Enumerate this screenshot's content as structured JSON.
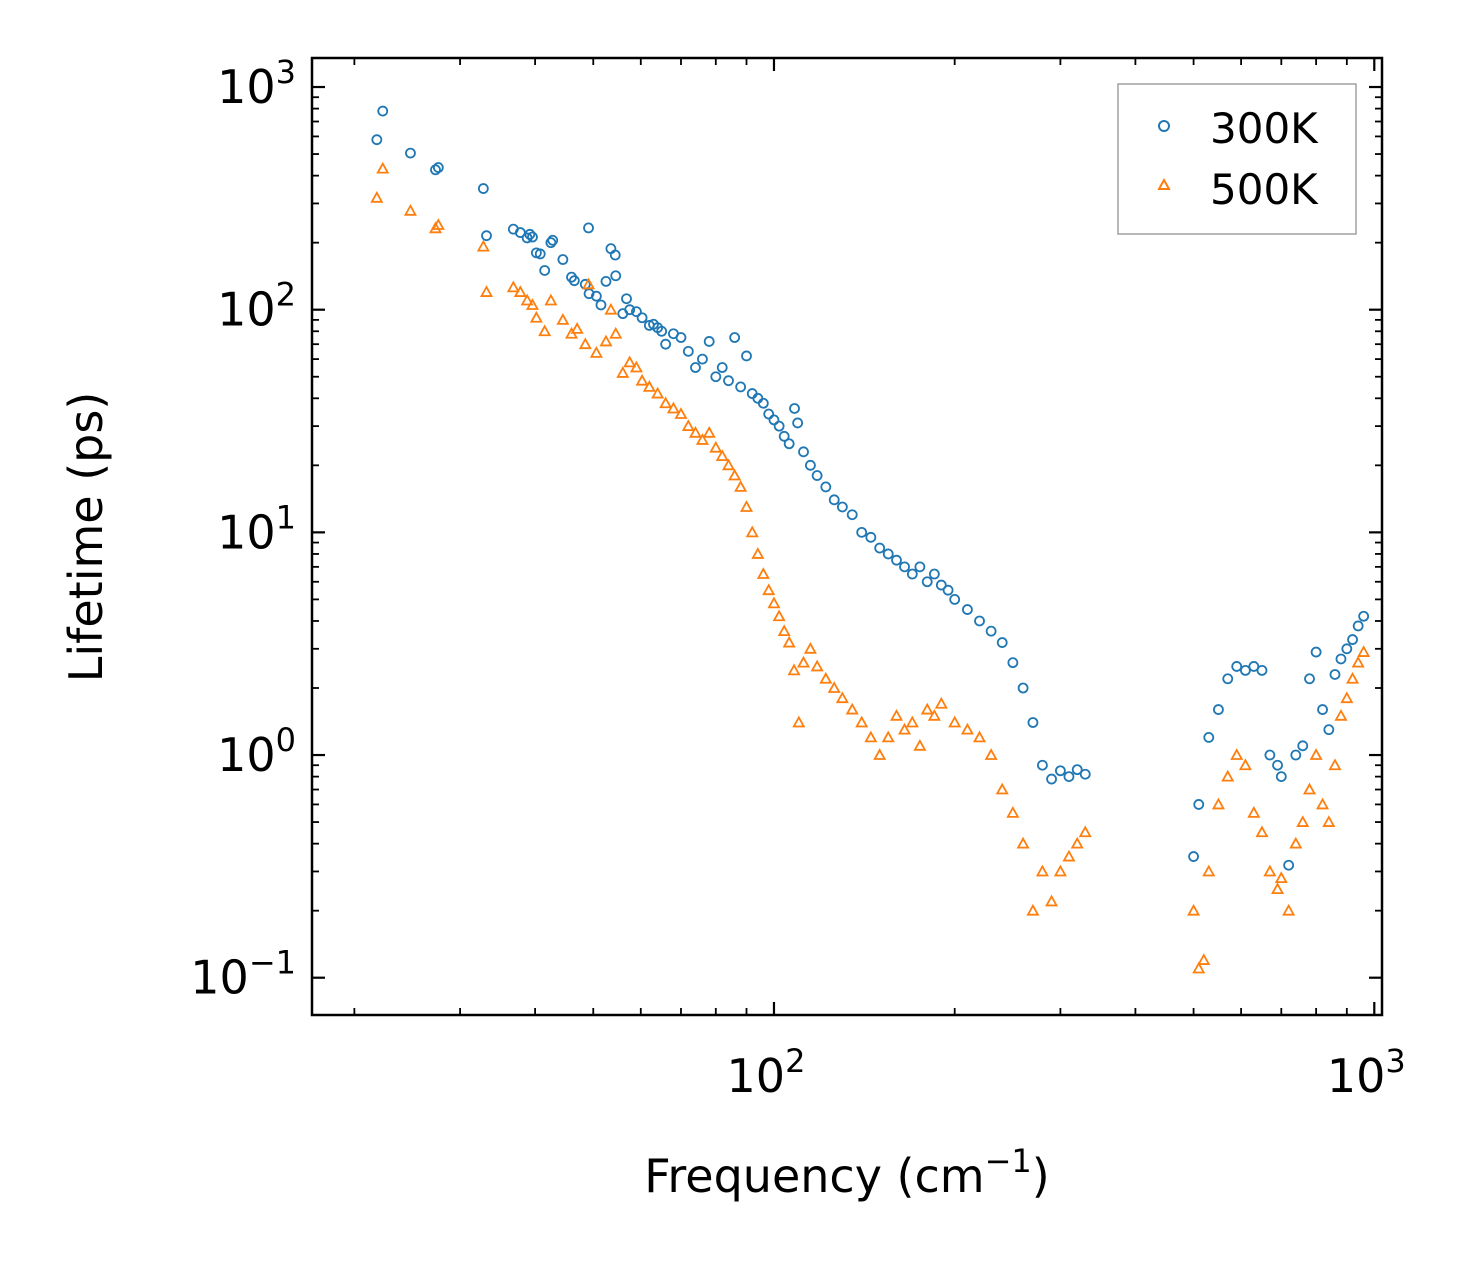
{
  "chart_data": {
    "type": "scatter",
    "title": "",
    "xlabel": "Frequency (cm",
    "xlabel_sup": "−1",
    "xlabel_end": ")",
    "ylabel": "Lifetime (ps)",
    "xscale": "log",
    "yscale": "log",
    "xlim": [
      17,
      1030
    ],
    "ylim": [
      0.068,
      1350
    ],
    "x_ticks": [
      {
        "value": 100,
        "base": "10",
        "exp": "2"
      },
      {
        "value": 1000,
        "base": "10",
        "exp": "3"
      }
    ],
    "y_ticks": [
      {
        "value": 0.1,
        "base": "10",
        "exp": "−1"
      },
      {
        "value": 1,
        "base": "10",
        "exp": "0"
      },
      {
        "value": 10,
        "base": "10",
        "exp": "1"
      },
      {
        "value": 100,
        "base": "10",
        "exp": "2"
      },
      {
        "value": 1000,
        "base": "10",
        "exp": "3"
      }
    ],
    "grid": false,
    "legend_position": "top-right",
    "colors": {
      "300K": "#1f77b4",
      "500K": "#ff7f0e"
    },
    "series": [
      {
        "name": "300K",
        "marker": "circle",
        "color": "#1f77b4",
        "points": [
          [
            21.8,
            580
          ],
          [
            22.3,
            780
          ],
          [
            24.8,
            505
          ],
          [
            27.3,
            425
          ],
          [
            27.6,
            435
          ],
          [
            32.8,
            350
          ],
          [
            33.2,
            215
          ],
          [
            36.8,
            230
          ],
          [
            37.8,
            222
          ],
          [
            38.8,
            210
          ],
          [
            39.2,
            218
          ],
          [
            39.6,
            212
          ],
          [
            40.2,
            180
          ],
          [
            40.8,
            178
          ],
          [
            41.5,
            150
          ],
          [
            42.5,
            200
          ],
          [
            42.8,
            205
          ],
          [
            44.5,
            168
          ],
          [
            46,
            140
          ],
          [
            46.5,
            135
          ],
          [
            48.5,
            130
          ],
          [
            49.1,
            233
          ],
          [
            49.2,
            118
          ],
          [
            50.6,
            115
          ],
          [
            51.5,
            105
          ],
          [
            52.5,
            134
          ],
          [
            53.5,
            188
          ],
          [
            54.4,
            176
          ],
          [
            54.5,
            142
          ],
          [
            56,
            96
          ],
          [
            56.8,
            112
          ],
          [
            57.5,
            100
          ],
          [
            59,
            98
          ],
          [
            60.3,
            92
          ],
          [
            62,
            85
          ],
          [
            63,
            86
          ],
          [
            64,
            83
          ],
          [
            65,
            80
          ],
          [
            66,
            70
          ],
          [
            68,
            78
          ],
          [
            70,
            75
          ],
          [
            72,
            65
          ],
          [
            74,
            55
          ],
          [
            76,
            60
          ],
          [
            78,
            72
          ],
          [
            80,
            50
          ],
          [
            82,
            55
          ],
          [
            84,
            48
          ],
          [
            86,
            75
          ],
          [
            88,
            45
          ],
          [
            90,
            62
          ],
          [
            92,
            42
          ],
          [
            94,
            40
          ],
          [
            96,
            38
          ],
          [
            98,
            34
          ],
          [
            100,
            32
          ],
          [
            102,
            30
          ],
          [
            104,
            27
          ],
          [
            106,
            25
          ],
          [
            108.2,
            36
          ],
          [
            109.5,
            31
          ],
          [
            112,
            23
          ],
          [
            115,
            20
          ],
          [
            118,
            18
          ],
          [
            122,
            16
          ],
          [
            126,
            14
          ],
          [
            130,
            13
          ],
          [
            135,
            12
          ],
          [
            140,
            10
          ],
          [
            145,
            9.5
          ],
          [
            150,
            8.5
          ],
          [
            155,
            8
          ],
          [
            160,
            7.5
          ],
          [
            165,
            7
          ],
          [
            170,
            6.5
          ],
          [
            175,
            7
          ],
          [
            180,
            6
          ],
          [
            185,
            6.5
          ],
          [
            190,
            5.8
          ],
          [
            195,
            5.5
          ],
          [
            200,
            5
          ],
          [
            210,
            4.5
          ],
          [
            220,
            4
          ],
          [
            230,
            3.6
          ],
          [
            240,
            3.2
          ],
          [
            250,
            2.6
          ],
          [
            260,
            2
          ],
          [
            270,
            1.4
          ],
          [
            280,
            0.9
          ],
          [
            290,
            0.78
          ],
          [
            300,
            0.85
          ],
          [
            310,
            0.8
          ],
          [
            320,
            0.86
          ],
          [
            330,
            0.82
          ],
          [
            500,
            0.35
          ],
          [
            510,
            0.6
          ],
          [
            530,
            1.2
          ],
          [
            550,
            1.6
          ],
          [
            570,
            2.2
          ],
          [
            590,
            2.5
          ],
          [
            610,
            2.4
          ],
          [
            630,
            2.5
          ],
          [
            650,
            2.4
          ],
          [
            670,
            1.0
          ],
          [
            690,
            0.9
          ],
          [
            700,
            0.8
          ],
          [
            720,
            0.32
          ],
          [
            740,
            1.0
          ],
          [
            760,
            1.1
          ],
          [
            780,
            2.2
          ],
          [
            800,
            2.9
          ],
          [
            820,
            1.6
          ],
          [
            840,
            1.3
          ],
          [
            860,
            2.3
          ],
          [
            880,
            2.7
          ],
          [
            900,
            3.0
          ],
          [
            920,
            3.3
          ],
          [
            940,
            3.8
          ],
          [
            960,
            4.2
          ]
        ]
      },
      {
        "name": "500K",
        "marker": "triangle",
        "color": "#ff7f0e",
        "points": [
          [
            21.8,
            318
          ],
          [
            22.3,
            430
          ],
          [
            24.8,
            278
          ],
          [
            27.3,
            232
          ],
          [
            27.6,
            240
          ],
          [
            32.8,
            192
          ],
          [
            33.2,
            120
          ],
          [
            36.8,
            126
          ],
          [
            37.8,
            120
          ],
          [
            38.8,
            110
          ],
          [
            39.6,
            105
          ],
          [
            40.2,
            92
          ],
          [
            41.5,
            80
          ],
          [
            42.5,
            110
          ],
          [
            44.5,
            90
          ],
          [
            46,
            78
          ],
          [
            47,
            82
          ],
          [
            48.5,
            70
          ],
          [
            49.1,
            130
          ],
          [
            50.6,
            64
          ],
          [
            52.5,
            72
          ],
          [
            53.5,
            100
          ],
          [
            54.5,
            78
          ],
          [
            56,
            52
          ],
          [
            57.5,
            58
          ],
          [
            59,
            55
          ],
          [
            60.3,
            48
          ],
          [
            62,
            45
          ],
          [
            64,
            42
          ],
          [
            66,
            38
          ],
          [
            68,
            36
          ],
          [
            70,
            34
          ],
          [
            72,
            30
          ],
          [
            74,
            28
          ],
          [
            76,
            26
          ],
          [
            78,
            28
          ],
          [
            80,
            24
          ],
          [
            82,
            22
          ],
          [
            84,
            20
          ],
          [
            86,
            18
          ],
          [
            88,
            16
          ],
          [
            90,
            13
          ],
          [
            92,
            10
          ],
          [
            94,
            8
          ],
          [
            96,
            6.5
          ],
          [
            98,
            5.5
          ],
          [
            100,
            4.8
          ],
          [
            102,
            4.2
          ],
          [
            104,
            3.6
          ],
          [
            106,
            3.2
          ],
          [
            108,
            2.4
          ],
          [
            110,
            1.4
          ],
          [
            112,
            2.6
          ],
          [
            115,
            3
          ],
          [
            118,
            2.5
          ],
          [
            122,
            2.2
          ],
          [
            126,
            2
          ],
          [
            130,
            1.8
          ],
          [
            135,
            1.6
          ],
          [
            140,
            1.4
          ],
          [
            145,
            1.2
          ],
          [
            150,
            1.0
          ],
          [
            155,
            1.2
          ],
          [
            160,
            1.5
          ],
          [
            165,
            1.3
          ],
          [
            170,
            1.4
          ],
          [
            175,
            1.1
          ],
          [
            180,
            1.6
          ],
          [
            185,
            1.5
          ],
          [
            190,
            1.7
          ],
          [
            200,
            1.4
          ],
          [
            210,
            1.3
          ],
          [
            220,
            1.2
          ],
          [
            230,
            1.0
          ],
          [
            240,
            0.7
          ],
          [
            250,
            0.55
          ],
          [
            260,
            0.4
          ],
          [
            270,
            0.2
          ],
          [
            280,
            0.3
          ],
          [
            290,
            0.22
          ],
          [
            300,
            0.3
          ],
          [
            310,
            0.35
          ],
          [
            320,
            0.4
          ],
          [
            330,
            0.45
          ],
          [
            500,
            0.2
          ],
          [
            510,
            0.11
          ],
          [
            520,
            0.12
          ],
          [
            530,
            0.3
          ],
          [
            550,
            0.6
          ],
          [
            570,
            0.8
          ],
          [
            590,
            1.0
          ],
          [
            610,
            0.9
          ],
          [
            630,
            0.55
          ],
          [
            650,
            0.45
          ],
          [
            670,
            0.3
          ],
          [
            690,
            0.25
          ],
          [
            700,
            0.28
          ],
          [
            720,
            0.2
          ],
          [
            740,
            0.4
          ],
          [
            760,
            0.5
          ],
          [
            780,
            0.7
          ],
          [
            800,
            1.0
          ],
          [
            820,
            0.6
          ],
          [
            840,
            0.5
          ],
          [
            860,
            0.9
          ],
          [
            880,
            1.5
          ],
          [
            900,
            1.8
          ],
          [
            920,
            2.2
          ],
          [
            940,
            2.6
          ],
          [
            960,
            2.9
          ]
        ]
      }
    ]
  }
}
